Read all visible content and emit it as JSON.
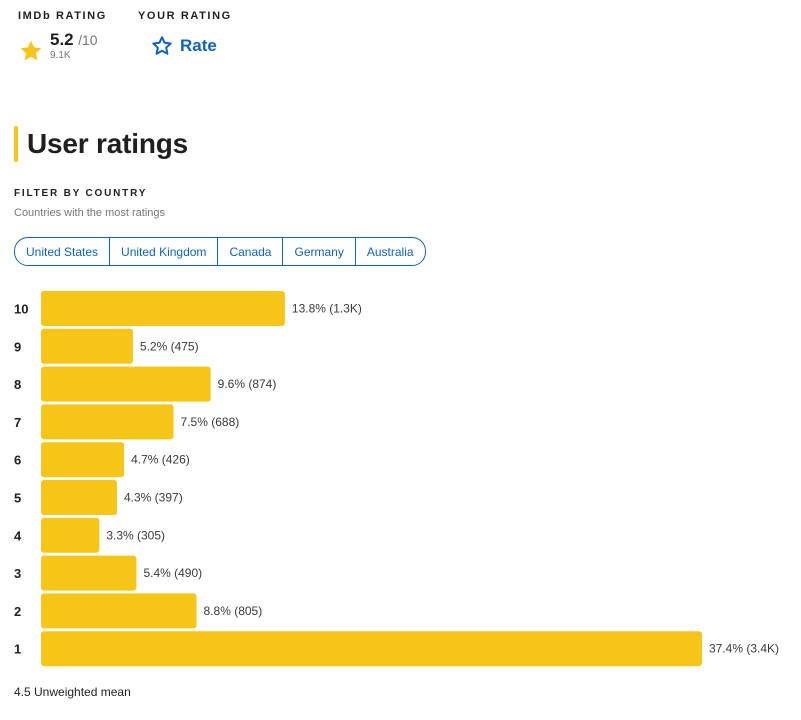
{
  "imdb_rating": {
    "label": "IMDb RATING",
    "score": "5.2",
    "denominator": "/10",
    "count": "9.1K"
  },
  "your_rating": {
    "label": "YOUR RATING",
    "rate_label": "Rate"
  },
  "section": {
    "title": "User ratings"
  },
  "filter": {
    "title": "FILTER BY COUNTRY",
    "subtitle": "Countries with the most ratings",
    "countries": [
      "United States",
      "United Kingdom",
      "Canada",
      "Germany",
      "Australia"
    ]
  },
  "colors": {
    "accent": "#f5c518",
    "link": "#0e63be"
  },
  "chart_data": {
    "type": "bar",
    "orientation": "horizontal",
    "categories": [
      "10",
      "9",
      "8",
      "7",
      "6",
      "5",
      "4",
      "3",
      "2",
      "1"
    ],
    "values": [
      13.8,
      5.2,
      9.6,
      7.5,
      4.7,
      4.3,
      3.3,
      5.4,
      8.8,
      37.4
    ],
    "value_labels": [
      "13.8% (1.3K)",
      "5.2% (475)",
      "9.6% (874)",
      "7.5% (688)",
      "4.7% (426)",
      "4.3% (397)",
      "3.3% (305)",
      "5.4% (490)",
      "8.8% (805)",
      "37.4% (3.4K)"
    ]
  },
  "summary": {
    "mean_text": "4.5 Unweighted mean"
  }
}
